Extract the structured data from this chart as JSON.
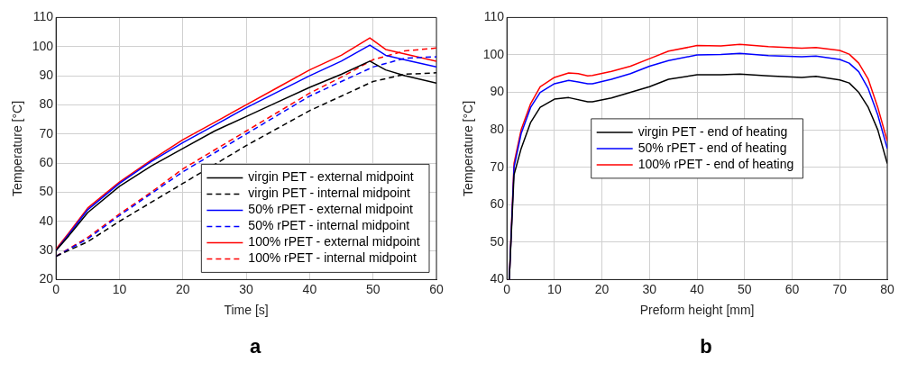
{
  "chart_data": [
    {
      "type": "line",
      "xlabel": "Time [s]",
      "ylabel": "Temperature [°C]",
      "xlim": [
        0,
        60
      ],
      "xticks": [
        0,
        10,
        20,
        30,
        40,
        50,
        60
      ],
      "ylim": [
        20,
        110
      ],
      "yticks": [
        20,
        30,
        40,
        50,
        60,
        70,
        80,
        90,
        100,
        110
      ],
      "grid": true,
      "legend": "bottom right",
      "marker": "none",
      "annotations": [
        "a"
      ],
      "series": [
        {
          "name": "virgin PET - external midpoint",
          "color": "#000000",
          "line_style": "solid",
          "x": [
            0,
            2,
            5,
            10,
            15,
            20,
            25,
            30,
            35,
            40,
            45,
            49.5,
            52,
            55,
            60
          ],
          "values": [
            30,
            35,
            43,
            52,
            59,
            65,
            71,
            76,
            81,
            86,
            90.5,
            95,
            92,
            90,
            87.5
          ]
        },
        {
          "name": "virgin PET - internal midpoint",
          "color": "#000000",
          "line_style": "dashed",
          "x": [
            0,
            5,
            10,
            15,
            20,
            25,
            30,
            35,
            40,
            45,
            50,
            55,
            60
          ],
          "values": [
            28,
            33,
            40,
            46.5,
            53,
            59.5,
            66,
            72,
            78,
            83,
            88,
            90.5,
            91
          ]
        },
        {
          "name": "50% rPET - external midpoint",
          "color": "#0000ff",
          "line_style": "solid",
          "x": [
            0,
            2,
            5,
            10,
            15,
            20,
            25,
            30,
            35,
            40,
            45,
            49.5,
            52,
            56,
            60
          ],
          "values": [
            30,
            35.5,
            44,
            53,
            60.5,
            67,
            73,
            79,
            84.5,
            90,
            95,
            100.5,
            97,
            95,
            93
          ]
        },
        {
          "name": "50% rPET - internal midpoint",
          "color": "#0000ff",
          "line_style": "dashed",
          "x": [
            0,
            5,
            10,
            15,
            20,
            25,
            30,
            35,
            40,
            45,
            50,
            55,
            60
          ],
          "values": [
            28,
            34,
            42,
            49.5,
            57,
            63.5,
            70,
            76.5,
            83,
            88,
            93,
            96,
            96.5
          ]
        },
        {
          "name": "100% rPET - external midpoint",
          "color": "#ff0000",
          "line_style": "solid",
          "x": [
            0,
            2,
            5,
            10,
            15,
            20,
            25,
            30,
            35,
            40,
            45,
            49.5,
            52,
            56,
            60
          ],
          "values": [
            30.5,
            36,
            44.6,
            53.5,
            61,
            68,
            74,
            80,
            86,
            92,
            97,
            103,
            99,
            97,
            95
          ]
        },
        {
          "name": "100% rPET - internal midpoint",
          "color": "#ff0000",
          "line_style": "dashed",
          "x": [
            0,
            5,
            10,
            15,
            20,
            25,
            30,
            35,
            40,
            45,
            50,
            55,
            60
          ],
          "values": [
            28,
            34.5,
            42.5,
            50,
            58,
            64.5,
            71,
            77.5,
            84,
            89.5,
            95.5,
            98.5,
            99.5
          ]
        }
      ]
    },
    {
      "type": "line",
      "xlabel": "Preform height [mm]",
      "ylabel": "Temperature [°C]",
      "xlim": [
        0,
        80
      ],
      "xticks": [
        0,
        10,
        20,
        30,
        40,
        50,
        60,
        70,
        80
      ],
      "ylim": [
        40,
        110
      ],
      "yticks": [
        40,
        50,
        60,
        70,
        80,
        90,
        100,
        110
      ],
      "grid": true,
      "legend": "center",
      "marker": "none",
      "annotations": [
        "b"
      ],
      "series": [
        {
          "name": "virgin PET - end of heating",
          "color": "#000000",
          "x": [
            0.5,
            1.5,
            3,
            5,
            7,
            10,
            13,
            17,
            18,
            22,
            26,
            30,
            34,
            40,
            45,
            49,
            55,
            62,
            65,
            70,
            72,
            74,
            76,
            78,
            80
          ],
          "values": [
            40,
            68,
            75,
            82,
            86,
            88.2,
            88.6,
            87.5,
            87.5,
            88.5,
            90,
            91.5,
            93.5,
            94.7,
            94.7,
            94.9,
            94.4,
            94,
            94.3,
            93.3,
            92.5,
            90,
            86,
            80,
            71
          ]
        },
        {
          "name": "50% rPET - end of heating",
          "color": "#0000ff",
          "x": [
            0.5,
            1.5,
            3,
            5,
            7,
            10,
            13,
            15,
            17,
            18,
            22,
            26,
            30,
            34,
            40,
            45,
            49,
            55,
            62,
            65,
            70,
            72,
            74,
            76,
            78,
            80
          ],
          "values": [
            40,
            70,
            79,
            86,
            90,
            92.3,
            93.2,
            92.8,
            92.3,
            92.3,
            93.5,
            95,
            97,
            98.5,
            100,
            100.1,
            100.4,
            99.8,
            99.5,
            99.7,
            98.8,
            97.8,
            95.5,
            91,
            84,
            75
          ]
        },
        {
          "name": "100% rPET - end of heating",
          "color": "#ff0000",
          "x": [
            0.5,
            1.5,
            3,
            5,
            7,
            10,
            13,
            15,
            17,
            18,
            22,
            26,
            30,
            34,
            40,
            45,
            49,
            55,
            62,
            65,
            70,
            72,
            74,
            76,
            78,
            80
          ],
          "values": [
            40,
            71,
            80,
            87,
            91.5,
            94,
            95.2,
            95,
            94.4,
            94.5,
            95.6,
            97,
            99,
            101,
            102.5,
            102.4,
            102.8,
            102.2,
            101.8,
            102,
            101.2,
            100.2,
            97.8,
            93.5,
            86,
            77
          ]
        }
      ]
    }
  ]
}
